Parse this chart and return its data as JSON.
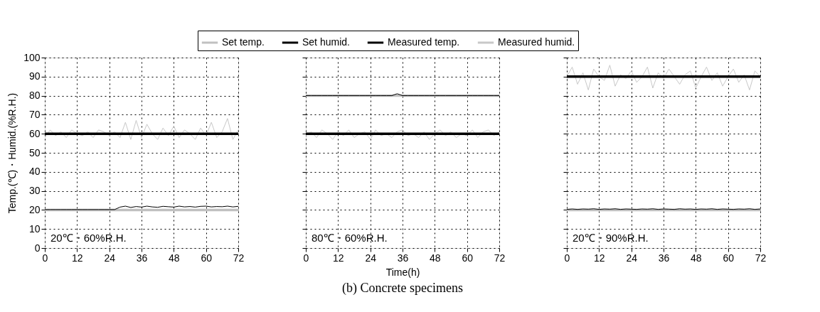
{
  "chart_data": [
    {
      "type": "line",
      "legend": "top",
      "grid": true,
      "ylabel": "Temp.(℃)・Humid.(%R.H.)",
      "xlim": [
        0,
        72
      ],
      "xticks": [
        0,
        12,
        24,
        36,
        48,
        60,
        72
      ],
      "ylim": [
        0,
        100
      ],
      "yticks": [
        0,
        10,
        20,
        30,
        40,
        50,
        60,
        70,
        80,
        90,
        100
      ],
      "annotations": [
        "20℃・60%R.H."
      ],
      "series": [
        {
          "name": "Set temp.",
          "color": "#c0c0c0",
          "x": [
            0,
            72
          ],
          "values": [
            20,
            20
          ]
        },
        {
          "name": "Set humid.",
          "color": "#000000",
          "x": [
            0,
            12,
            24,
            36,
            48,
            60,
            72
          ],
          "values": [
            60,
            60,
            60,
            60,
            60,
            60,
            60
          ]
        },
        {
          "name": "Measured temp.",
          "color": "#000000",
          "x": [
            0,
            2,
            4,
            6,
            8,
            10,
            12,
            14,
            16,
            18,
            20,
            22,
            24,
            26,
            28,
            30,
            32,
            34,
            36,
            38,
            40,
            42,
            44,
            46,
            48,
            50,
            52,
            54,
            56,
            58,
            60,
            62,
            64,
            66,
            68,
            70,
            72
          ],
          "values": [
            20.2,
            20.2,
            20.2,
            20.2,
            20.2,
            20.2,
            20.2,
            20.2,
            20.2,
            20.2,
            20.2,
            20.2,
            20.2,
            20.2,
            21.5,
            22,
            21.3,
            21.8,
            21.5,
            22,
            21.6,
            21.4,
            21.9,
            21.7,
            21.5,
            22,
            21.6,
            21.8,
            21.5,
            21.9,
            22,
            21.6,
            21.8,
            21.7,
            22,
            21.6,
            21.9
          ]
        },
        {
          "name": "Measured humid.",
          "color": "#c8c8c8",
          "x": [
            0,
            2,
            4,
            6,
            8,
            10,
            12,
            14,
            16,
            18,
            20,
            22,
            24,
            26,
            28,
            30,
            32,
            34,
            36,
            38,
            40,
            42,
            44,
            46,
            48,
            50,
            52,
            54,
            56,
            58,
            60,
            62,
            64,
            66,
            68,
            70,
            72
          ],
          "values": [
            58,
            62,
            59,
            61,
            58,
            62,
            60,
            59,
            61,
            58,
            62,
            61,
            59,
            61,
            58,
            66,
            57,
            67,
            58,
            65,
            60,
            57,
            63,
            59,
            64,
            58,
            62,
            60,
            57,
            63,
            59,
            66,
            58,
            61,
            68,
            57,
            62
          ]
        }
      ]
    },
    {
      "type": "line",
      "grid": true,
      "tick_labels": "x",
      "xlabel": "Time(h)",
      "xlim": [
        0,
        72
      ],
      "xticks": [
        0,
        12,
        24,
        36,
        48,
        60,
        72
      ],
      "ylim": [
        0,
        100
      ],
      "yticks": [
        0,
        10,
        20,
        30,
        40,
        50,
        60,
        70,
        80,
        90,
        100
      ],
      "annotations": [
        "80℃・60%R.H.",
        "(b) Concrete specimens"
      ],
      "series": [
        {
          "color": "#c0c0c0",
          "x": [
            0,
            72
          ],
          "values": [
            80,
            80
          ]
        },
        {
          "color": "#000000",
          "x": [
            0,
            12,
            24,
            36,
            48,
            60,
            72
          ],
          "values": [
            60,
            60,
            60,
            60,
            60,
            60,
            60
          ]
        },
        {
          "color": "#000000",
          "x": [
            0,
            2,
            4,
            6,
            8,
            10,
            12,
            14,
            16,
            18,
            20,
            22,
            24,
            26,
            28,
            30,
            32,
            34,
            36,
            38,
            40,
            42,
            44,
            46,
            48,
            50,
            52,
            54,
            56,
            58,
            60,
            62,
            64,
            66,
            68,
            70,
            72
          ],
          "values": [
            80,
            80,
            80,
            80,
            80,
            80,
            80,
            80,
            80,
            80,
            80,
            80,
            80,
            80,
            80,
            80,
            80,
            81,
            80,
            80,
            80,
            80,
            80,
            80,
            80,
            80,
            80,
            80,
            80,
            80,
            80,
            80,
            80,
            80,
            80,
            80,
            80
          ]
        },
        {
          "color": "#c8c8c8",
          "x": [
            0,
            2,
            4,
            6,
            8,
            10,
            12,
            14,
            16,
            18,
            20,
            22,
            24,
            26,
            28,
            30,
            32,
            34,
            36,
            38,
            40,
            42,
            44,
            46,
            48,
            50,
            52,
            54,
            56,
            58,
            60,
            62,
            64,
            66,
            68,
            70,
            72
          ],
          "values": [
            59,
            61,
            58,
            62,
            60,
            57,
            61,
            59,
            62,
            58,
            60,
            61,
            57,
            62,
            59,
            60,
            58,
            61,
            62,
            59,
            60,
            58,
            61,
            57,
            60,
            62,
            59,
            61,
            58,
            60,
            59,
            62,
            58,
            61,
            62,
            59,
            61
          ]
        }
      ]
    },
    {
      "type": "line",
      "grid": true,
      "tick_labels": "x",
      "xlim": [
        0,
        72
      ],
      "xticks": [
        0,
        12,
        24,
        36,
        48,
        60,
        72
      ],
      "ylim": [
        0,
        100
      ],
      "yticks": [
        0,
        10,
        20,
        30,
        40,
        50,
        60,
        70,
        80,
        90,
        100
      ],
      "annotations": [
        "20℃・90%R.H."
      ],
      "series": [
        {
          "color": "#c0c0c0",
          "x": [
            0,
            72
          ],
          "values": [
            20,
            20
          ]
        },
        {
          "color": "#000000",
          "x": [
            0,
            12,
            24,
            36,
            48,
            60,
            72
          ],
          "values": [
            90,
            90,
            90,
            90,
            90,
            90,
            90
          ]
        },
        {
          "color": "#000000",
          "x": [
            0,
            2,
            4,
            6,
            8,
            10,
            12,
            14,
            16,
            18,
            20,
            22,
            24,
            26,
            28,
            30,
            32,
            34,
            36,
            38,
            40,
            42,
            44,
            46,
            48,
            50,
            52,
            54,
            56,
            58,
            60,
            62,
            64,
            66,
            68,
            70,
            72
          ],
          "values": [
            20.3,
            20.5,
            20.3,
            20.5,
            20.4,
            20.6,
            20.3,
            20.5,
            20.4,
            20.6,
            20.3,
            20.5,
            20.4,
            20.3,
            20.5,
            20.4,
            20.6,
            20.3,
            20.5,
            20.4,
            20.3,
            20.6,
            20.4,
            20.5,
            20.3,
            20.5,
            20.4,
            20.6,
            20.3,
            20.5,
            20.4,
            20.3,
            20.5,
            20.4,
            20.6,
            20.3,
            20.5
          ]
        },
        {
          "color": "#c8c8c8",
          "x": [
            0,
            2,
            4,
            6,
            8,
            10,
            12,
            14,
            16,
            18,
            20,
            22,
            24,
            26,
            28,
            30,
            32,
            34,
            36,
            38,
            40,
            42,
            44,
            46,
            48,
            50,
            52,
            54,
            56,
            58,
            60,
            62,
            64,
            66,
            68,
            70,
            72
          ],
          "values": [
            90,
            95,
            86,
            92,
            83,
            94,
            90,
            88,
            96,
            85,
            91,
            89,
            93,
            87,
            90,
            95,
            84,
            92,
            89,
            94,
            90,
            86,
            91,
            93,
            84,
            90,
            95,
            88,
            92,
            85,
            90,
            94,
            87,
            91,
            83,
            93,
            90
          ]
        }
      ]
    }
  ]
}
